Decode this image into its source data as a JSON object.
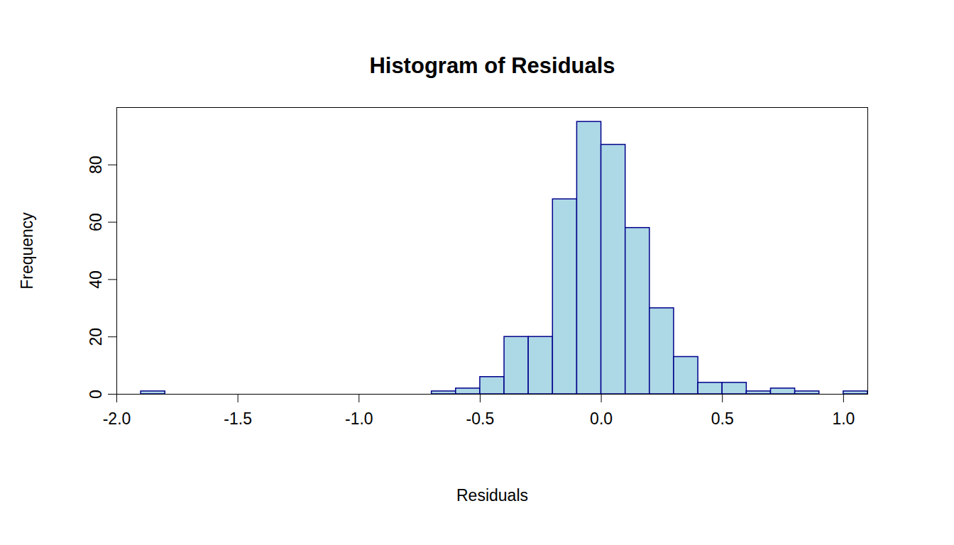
{
  "chart_data": {
    "type": "histogram",
    "title": "Histogram of Residuals",
    "x_label": "Residuals",
    "y_label": "Frequency",
    "bins": [
      -1.9,
      -1.8,
      -1.7,
      -1.6,
      -1.5,
      -1.4,
      -1.3,
      -1.2,
      -1.1,
      -1.0,
      -0.9,
      -0.8,
      -0.7,
      -0.6,
      -0.5,
      -0.4,
      -0.3,
      -0.2,
      -0.1,
      0.0,
      0.1,
      0.2,
      0.3,
      0.4,
      0.5,
      0.6,
      0.7,
      0.8,
      0.9,
      1.0,
      1.1
    ],
    "values": [
      1,
      0,
      0,
      0,
      0,
      0,
      0,
      0,
      0,
      0,
      0,
      0,
      1,
      2,
      6,
      20,
      20,
      68,
      95,
      87,
      58,
      30,
      13,
      4,
      4,
      1,
      2,
      1,
      0,
      1
    ],
    "color": "#add8e6",
    "xlim": [
      -2.0,
      1.1
    ],
    "xticks": [
      {
        "value": -2.0,
        "label": "-2.0"
      },
      -1.5,
      {
        "value": -1.0,
        "label": "-1.0"
      },
      -0.5,
      {
        "value": 0,
        "label": "0.0"
      },
      0.5,
      {
        "value": 1.0,
        "label": "1.0"
      }
    ],
    "ylim": [
      0,
      100
    ],
    "yticks": [
      0,
      20,
      40,
      60,
      80
    ],
    "grid": false
  }
}
